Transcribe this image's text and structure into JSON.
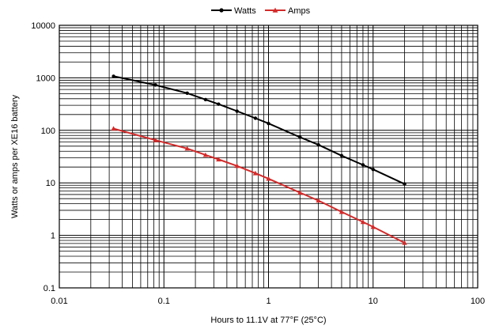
{
  "chart_data": {
    "type": "line",
    "title": "",
    "xlabel": "Hours to 11.1V at 77°F (25°C)",
    "ylabel": "Watts or amps per XE16 battery",
    "x_scale": "log",
    "y_scale": "log",
    "xlim": [
      0.01,
      100
    ],
    "ylim": [
      0.1,
      10000
    ],
    "x_ticks": [
      "0.01",
      "0.1",
      "1",
      "10",
      "100"
    ],
    "y_ticks": [
      "0.1",
      "1",
      "10",
      "100",
      "1000",
      "10000"
    ],
    "grid": true,
    "legend": "top-center",
    "series": [
      {
        "name": "Watts",
        "color": "#000000",
        "marker": "circle",
        "points": [
          [
            0.033,
            1070
          ],
          [
            0.083,
            730
          ],
          [
            0.167,
            510
          ],
          [
            0.25,
            385
          ],
          [
            0.333,
            315
          ],
          [
            0.5,
            232
          ],
          [
            0.75,
            170
          ],
          [
            1,
            135
          ],
          [
            2,
            74
          ],
          [
            3,
            53
          ],
          [
            5,
            33
          ],
          [
            8,
            22
          ],
          [
            10,
            18
          ],
          [
            20,
            9.5
          ]
        ]
      },
      {
        "name": "Amps",
        "color": "#d42a2a",
        "marker": "triangle",
        "points": [
          [
            0.033,
            108
          ],
          [
            0.083,
            65
          ],
          [
            0.167,
            45
          ],
          [
            0.25,
            34
          ],
          [
            0.333,
            28
          ],
          [
            0.5,
            21
          ],
          [
            0.75,
            15.2
          ],
          [
            1,
            12
          ],
          [
            2,
            6.5
          ],
          [
            3,
            4.6
          ],
          [
            5,
            2.8
          ],
          [
            8,
            1.8
          ],
          [
            10,
            1.45
          ],
          [
            20,
            0.72
          ]
        ]
      }
    ]
  }
}
